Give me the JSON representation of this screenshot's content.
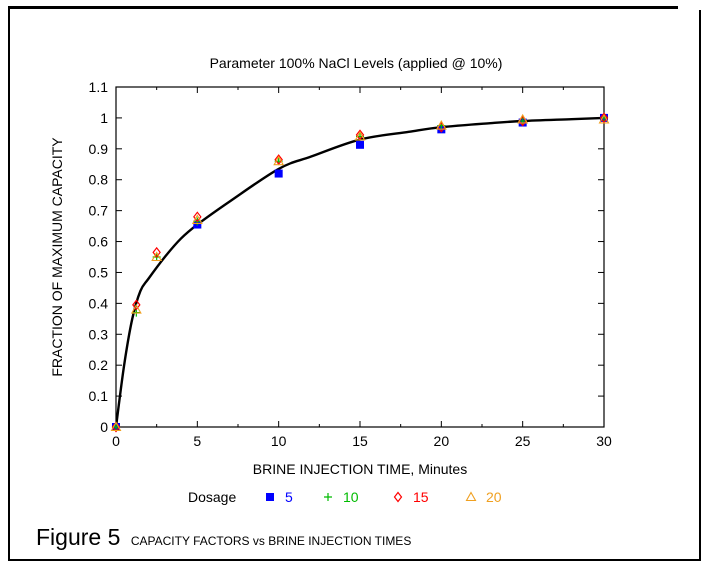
{
  "chart_data": {
    "type": "scatter",
    "title": "Parameter 100% NaCl Levels (applied @ 10%)",
    "xlabel": "BRINE INJECTION TIME,  Minutes",
    "ylabel": "FRACTION OF MAXIMUM CAPACITY",
    "xlim": [
      0,
      30
    ],
    "ylim": [
      0,
      1.1
    ],
    "xticks": [
      0,
      5,
      10,
      15,
      20,
      25,
      30
    ],
    "yticks": [
      0,
      0.1,
      0.2,
      0.3,
      0.4,
      0.5,
      0.6,
      0.7,
      0.8,
      0.9,
      1,
      1.1
    ],
    "xtick_labels": [
      "0",
      "5",
      "10",
      "15",
      "20",
      "25",
      "30"
    ],
    "ytick_labels": [
      "0",
      "0.1",
      "0.2",
      "0.3",
      "0.4",
      "0.5",
      "0.6",
      "0.7",
      "0.8",
      "0.9",
      "1",
      "1.1"
    ],
    "legend_title": "Dosage",
    "legend_position": "bottom",
    "series": [
      {
        "name": "5",
        "marker": "square",
        "color": "#0000ff",
        "x": [
          0,
          5,
          10,
          15,
          20,
          25,
          30
        ],
        "y": [
          0,
          0.655,
          0.82,
          0.913,
          0.963,
          0.985,
          1.0
        ]
      },
      {
        "name": "10",
        "marker": "plus",
        "color": "#00bb00",
        "x": [
          0,
          1.25,
          2.5,
          5,
          10,
          15,
          20,
          25,
          30
        ],
        "y": [
          0,
          0.37,
          0.55,
          0.665,
          0.86,
          0.94,
          0.975,
          0.99,
          1.0
        ]
      },
      {
        "name": "15",
        "marker": "diamond",
        "color": "#ff0000",
        "x": [
          0,
          1.25,
          2.5,
          5,
          10,
          15,
          20,
          25,
          30
        ],
        "y": [
          0,
          0.395,
          0.565,
          0.68,
          0.865,
          0.945,
          0.97,
          0.99,
          1.0
        ]
      },
      {
        "name": "20",
        "marker": "triangle",
        "color": "#f0a020",
        "x": [
          0,
          1.25,
          2.5,
          5,
          10,
          15,
          20,
          25,
          30
        ],
        "y": [
          0,
          0.38,
          0.55,
          0.67,
          0.86,
          0.94,
          0.975,
          0.995,
          0.995
        ]
      }
    ],
    "fit_curve": {
      "color": "#000000",
      "x": [
        0,
        0.5,
        1,
        1.5,
        2,
        3,
        4,
        5,
        7,
        10,
        12,
        15,
        18,
        20,
        23,
        25,
        28,
        30
      ],
      "y": [
        0,
        0.2,
        0.35,
        0.44,
        0.48,
        0.55,
        0.61,
        0.655,
        0.73,
        0.835,
        0.875,
        0.93,
        0.955,
        0.97,
        0.983,
        0.99,
        0.996,
        1.0
      ]
    }
  },
  "caption": {
    "figure": "Figure 5",
    "text": "CAPACITY  FACTORS vs BRINE INJECTION  TIMES"
  }
}
